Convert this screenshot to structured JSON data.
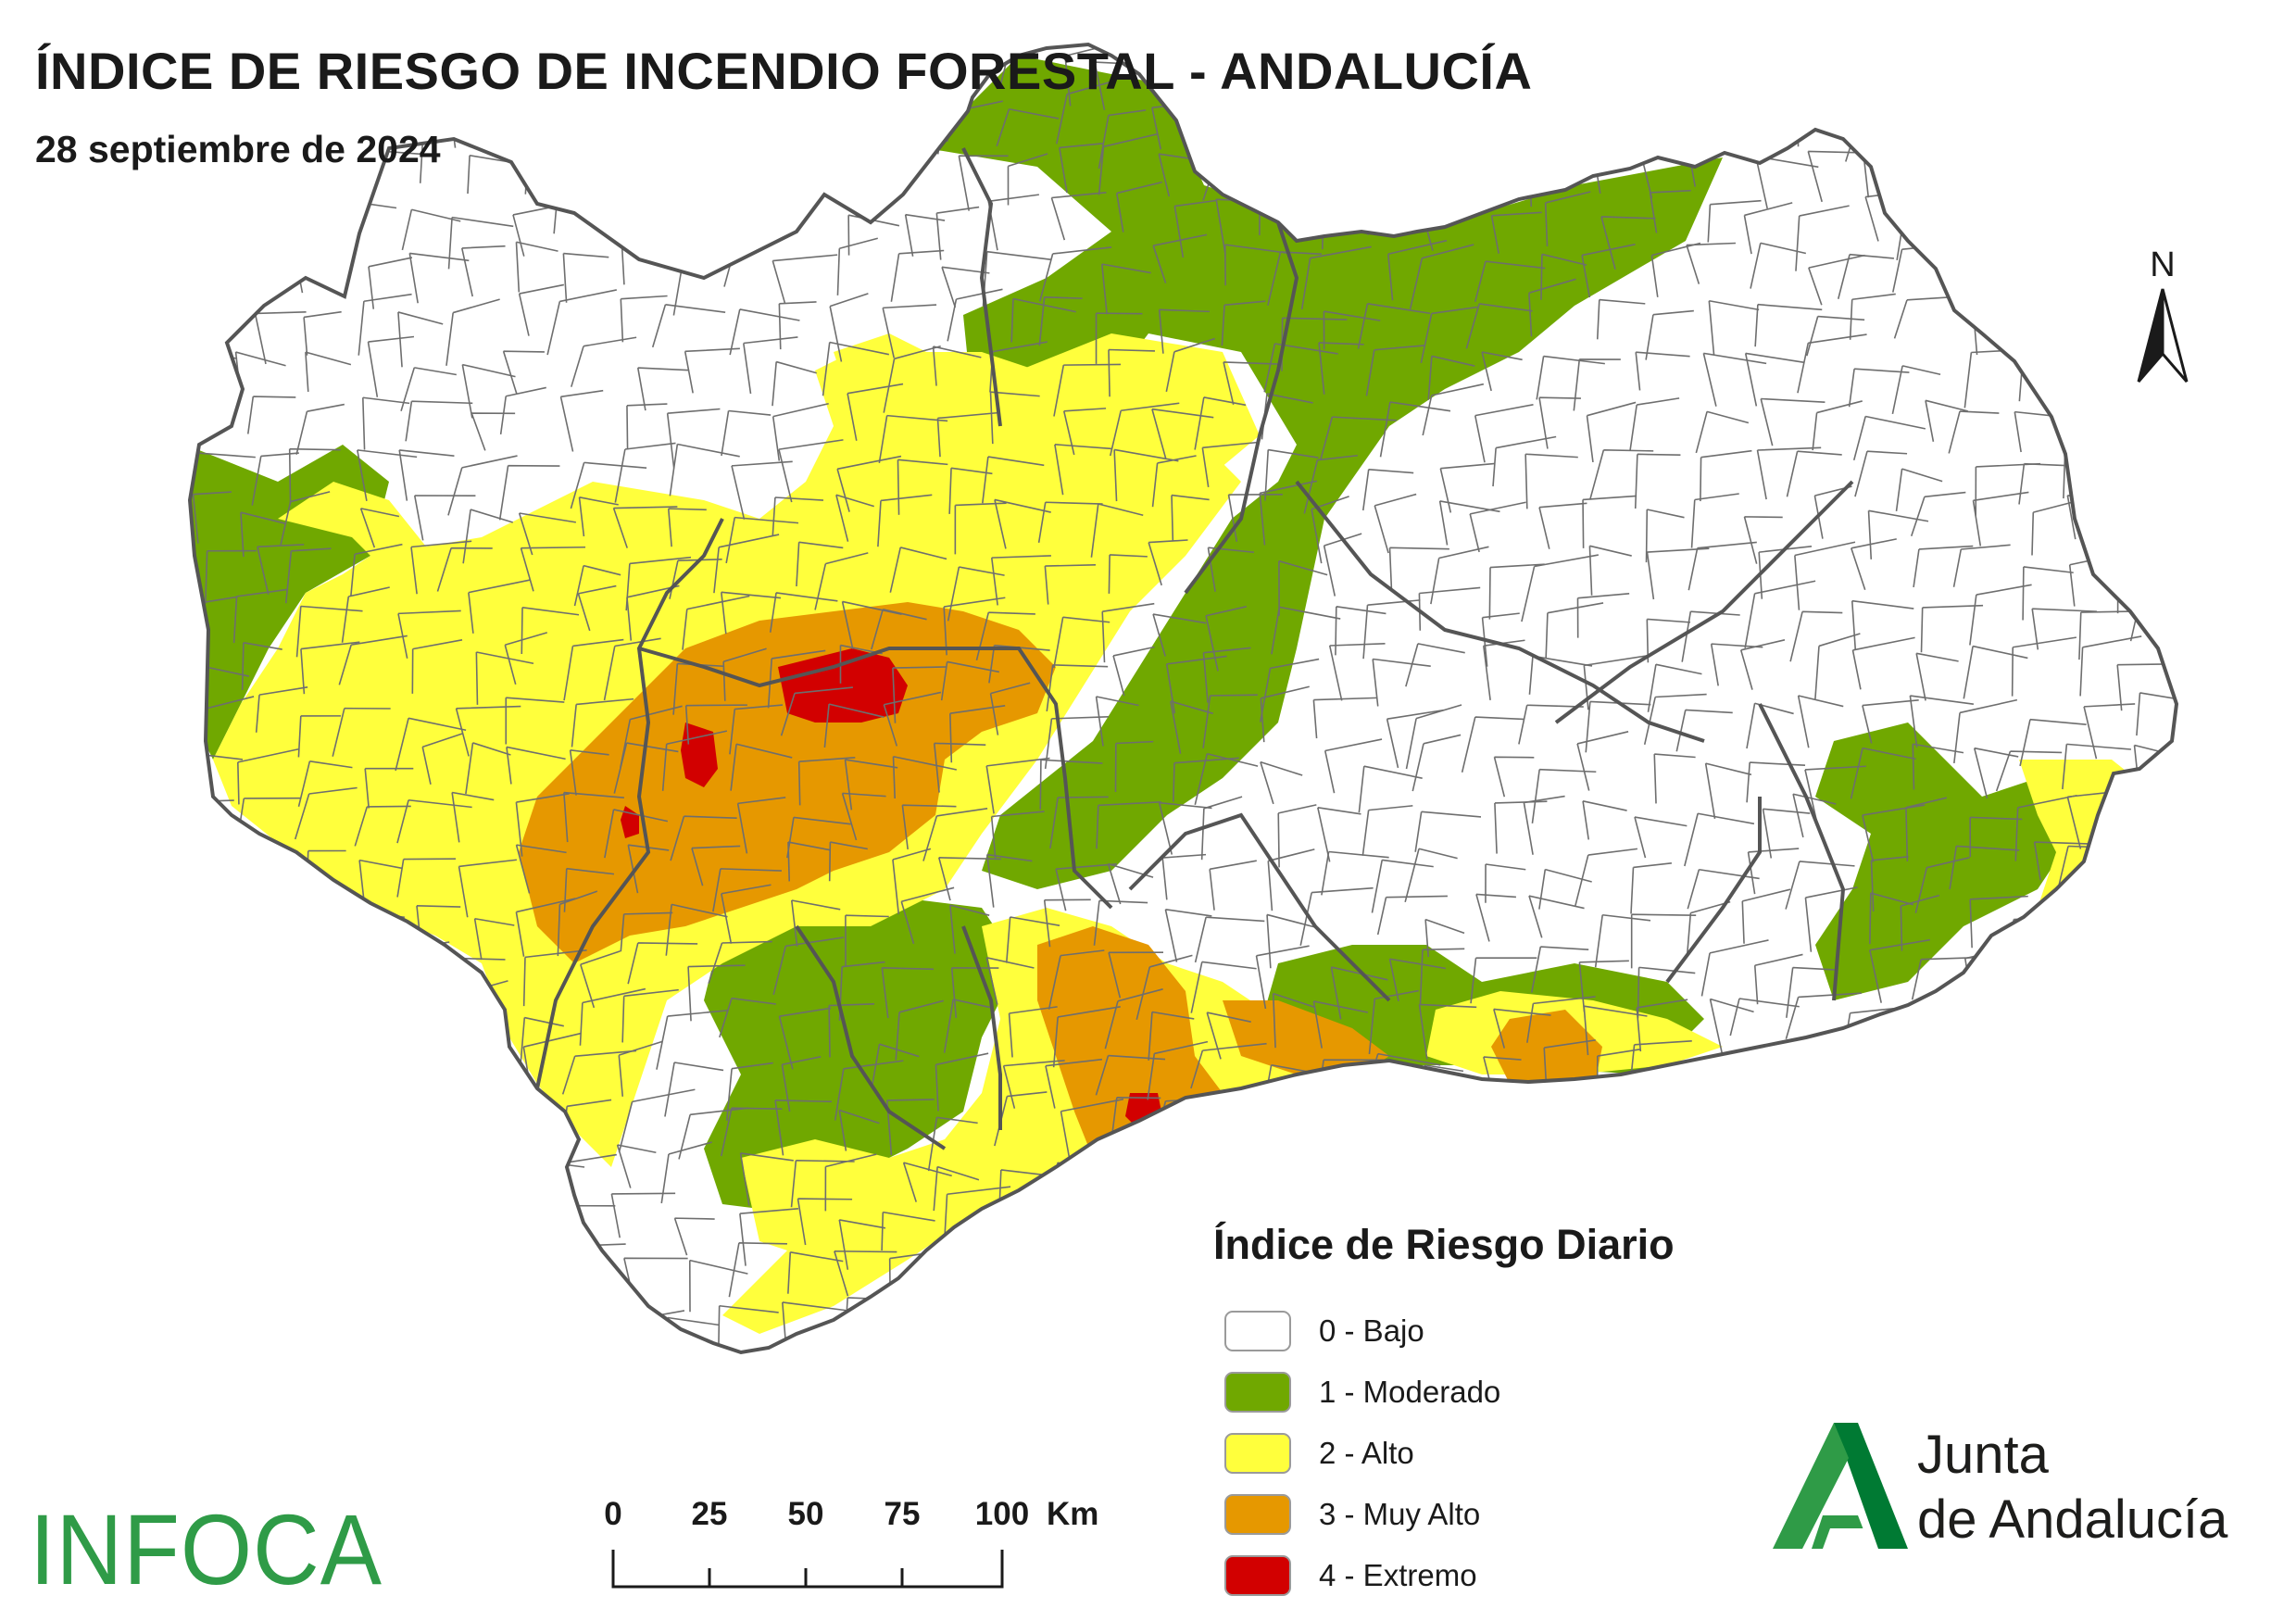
{
  "header": {
    "title": "ÍNDICE DE RIESGO DE INCENDIO FORESTAL - ANDALUCÍA",
    "subtitle": "28 septiembre de 2024"
  },
  "north_arrow": {
    "label": "N"
  },
  "legend": {
    "title": "Índice de Riesgo Diario",
    "items": [
      {
        "label": "0 - Bajo",
        "color": "#ffffff"
      },
      {
        "label": "1 - Moderado",
        "color": "#70a800"
      },
      {
        "label": "2 - Alto",
        "color": "#ffff3c"
      },
      {
        "label": "3 - Muy Alto",
        "color": "#e69800"
      },
      {
        "label": "4 - Extremo",
        "color": "#d20000"
      }
    ]
  },
  "scale_bar": {
    "ticks": [
      "0",
      "25",
      "50",
      "75",
      "100"
    ],
    "unit": "Km"
  },
  "branding": {
    "infoca": "INFOCA",
    "junta_line1": "Junta",
    "junta_line2": "de Andalucía"
  },
  "colors": {
    "border": "#555555",
    "municipal_lines": "#6e6e6e",
    "infoca_green": "#2f9b47",
    "junta_green": "#007a33"
  }
}
